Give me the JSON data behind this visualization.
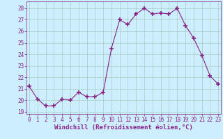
{
  "x": [
    0,
    1,
    2,
    3,
    4,
    5,
    6,
    7,
    8,
    9,
    10,
    11,
    12,
    13,
    14,
    15,
    16,
    17,
    18,
    19,
    20,
    21,
    22,
    23
  ],
  "y": [
    21.2,
    20.1,
    19.5,
    19.5,
    20.1,
    20.0,
    20.7,
    20.3,
    20.3,
    20.7,
    24.5,
    27.0,
    26.6,
    27.5,
    28.0,
    27.5,
    27.6,
    27.5,
    28.0,
    26.5,
    25.4,
    23.9,
    22.1,
    21.4
  ],
  "line_color": "#882288",
  "marker": "+",
  "marker_size": 4,
  "marker_lw": 1.2,
  "line_width": 0.8,
  "bg_color": "#cceeff",
  "grid_color": "#aaccbb",
  "xlabel": "Windchill (Refroidissement éolien,°C)",
  "ylim": [
    18.8,
    28.6
  ],
  "yticks": [
    19,
    20,
    21,
    22,
    23,
    24,
    25,
    26,
    27,
    28
  ],
  "xticks": [
    0,
    1,
    2,
    3,
    4,
    5,
    6,
    7,
    8,
    9,
    10,
    11,
    12,
    13,
    14,
    15,
    16,
    17,
    18,
    19,
    20,
    21,
    22,
    23
  ],
  "xlim": [
    -0.3,
    23.3
  ],
  "tick_color": "#882288",
  "tick_fontsize": 5.5,
  "xlabel_fontsize": 6.5,
  "label_color": "#882288",
  "spine_color": "#882288"
}
